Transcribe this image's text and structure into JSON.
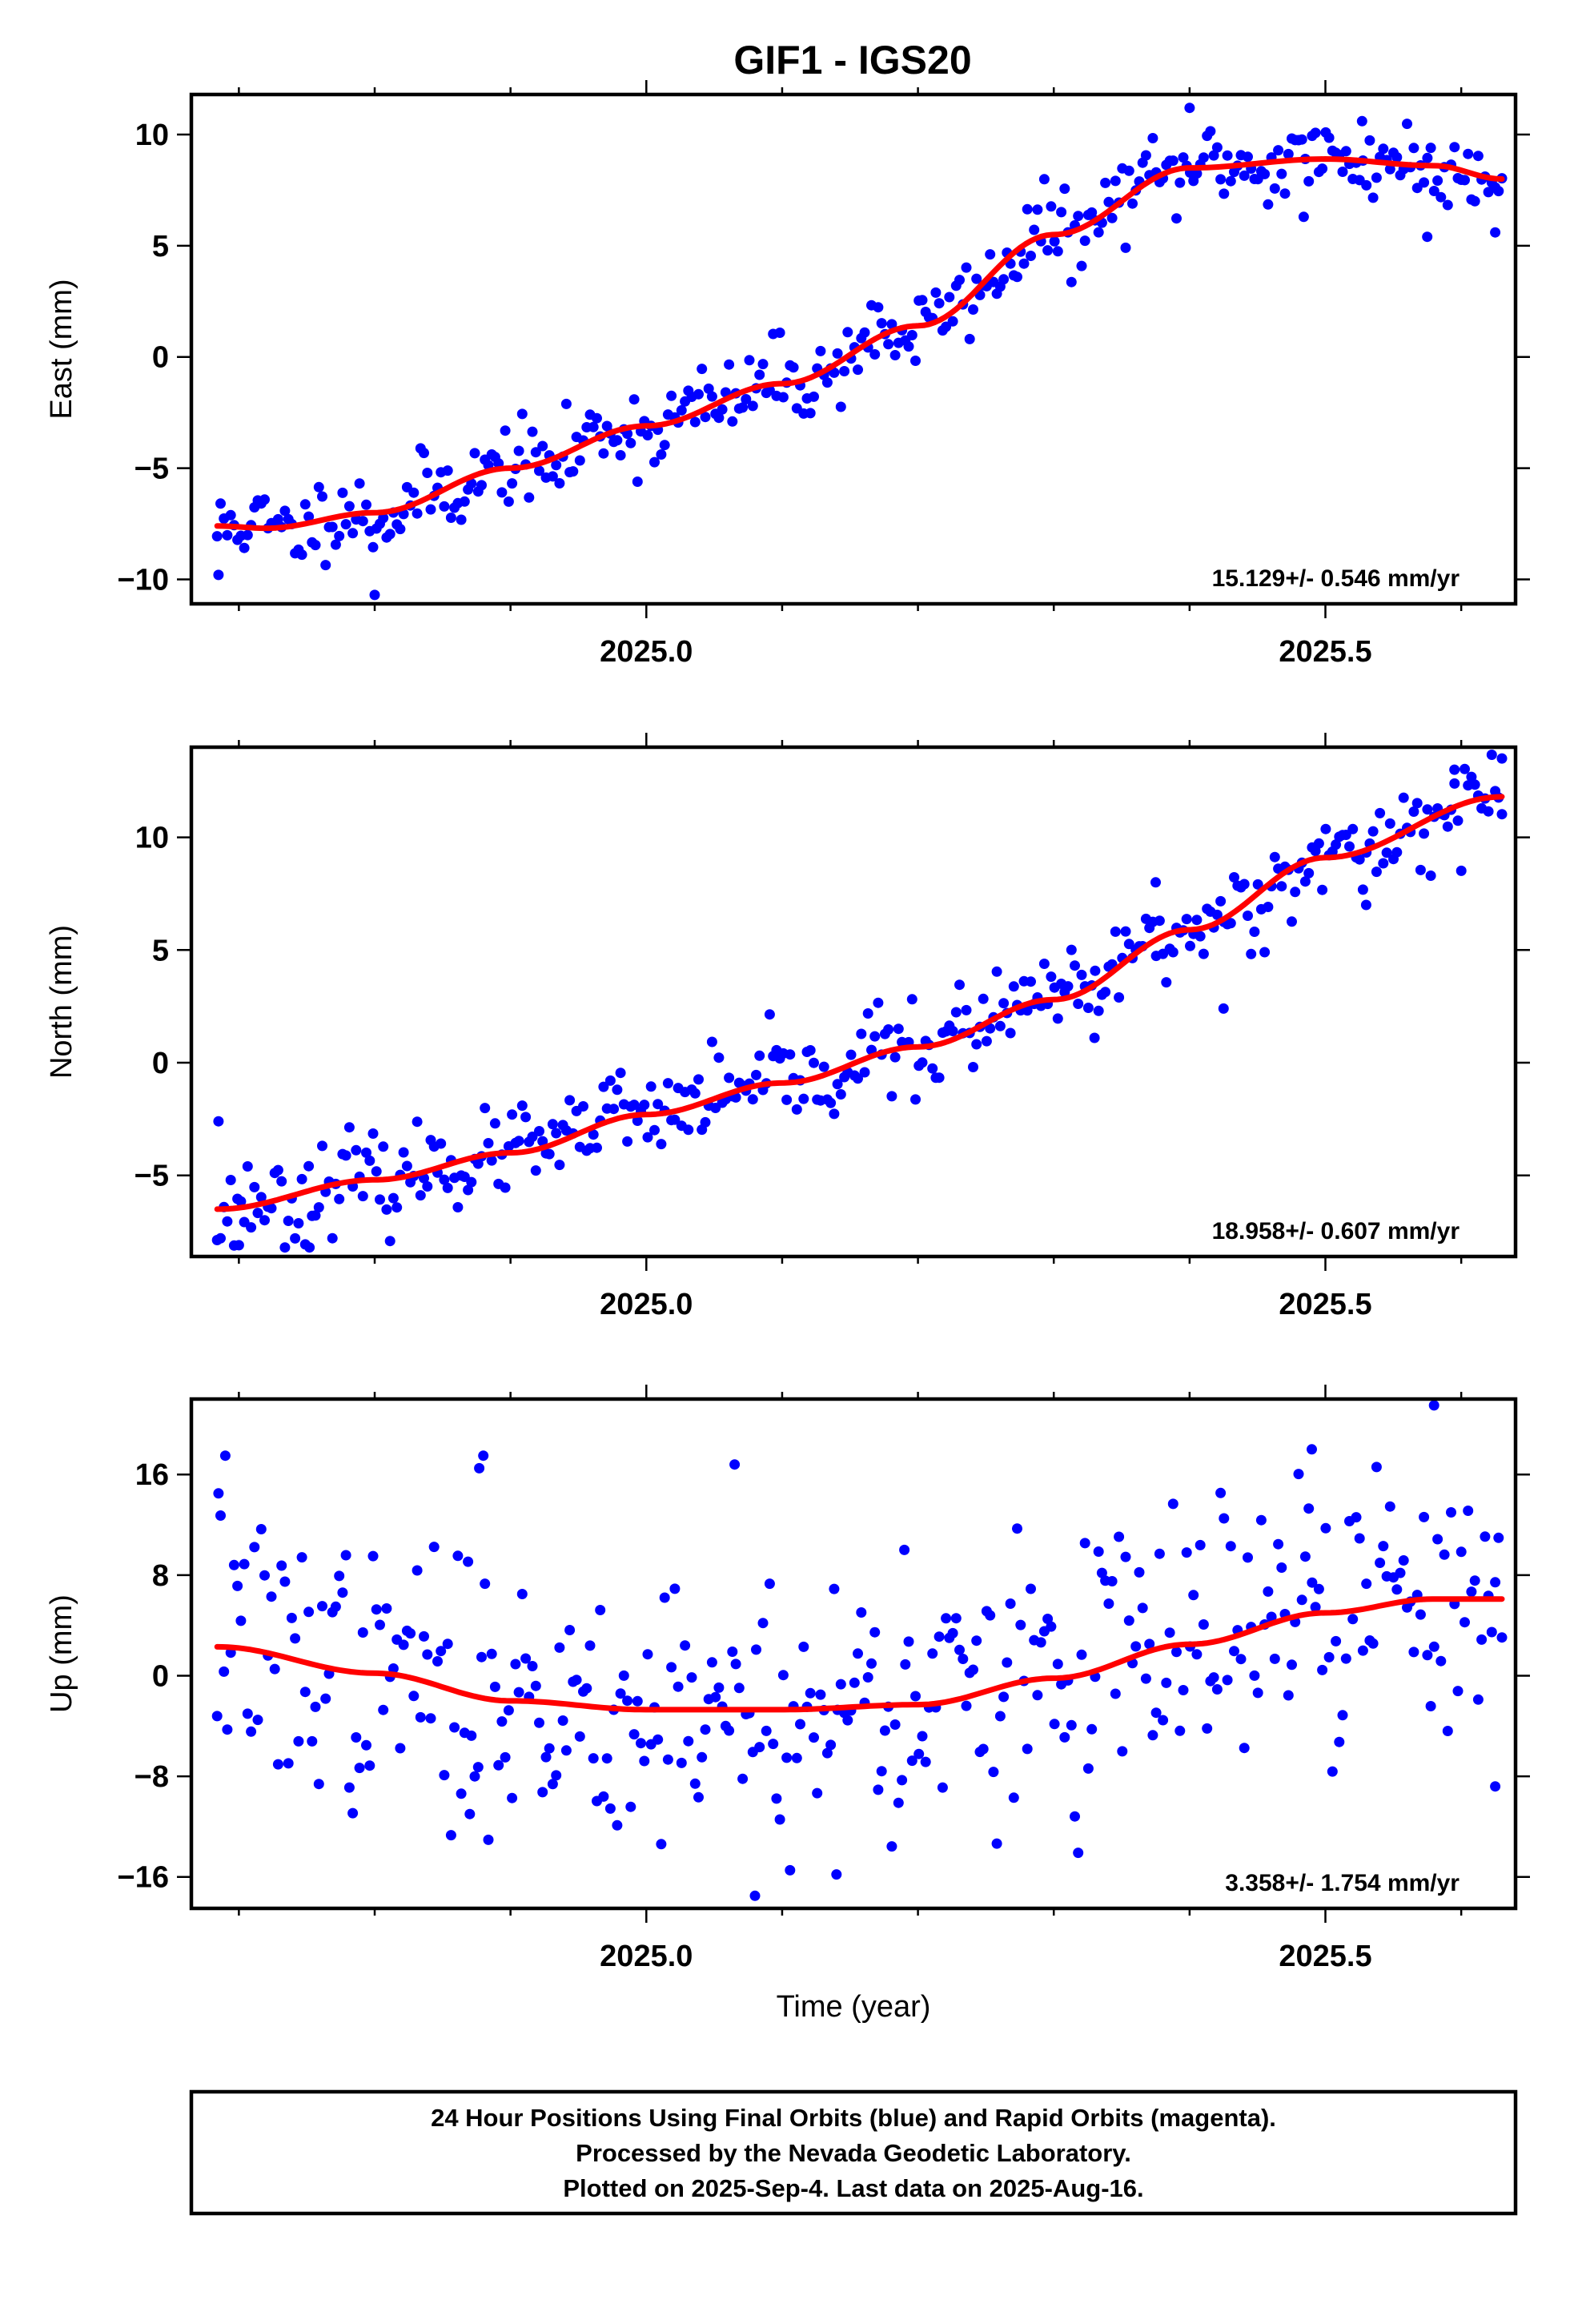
{
  "title": "GIF1 - IGS20",
  "footer": {
    "lines": [
      "24 Hour Positions Using Final Orbits (blue) and Rapid Orbits (magenta).",
      "Processed by the Nevada Geodetic Laboratory.",
      "Plotted on 2025-Sep-4. Last data on 2025-Aug-16."
    ]
  },
  "colors": {
    "points": "#0000ff",
    "fit": "#ff0000",
    "frame": "#000000"
  },
  "chart_data": [
    {
      "type": "scatter",
      "ylabel": "East (mm)",
      "xlabel": "",
      "xlim": [
        2024.665,
        2025.64
      ],
      "ylim": [
        -11.1,
        11.8
      ],
      "xticks": [
        2025.0,
        2025.5
      ],
      "xtick_labels": [
        "2025.0",
        "2025.5"
      ],
      "xminor": [
        2024.7,
        2024.8,
        2024.9,
        2025.1,
        2025.2,
        2025.3,
        2025.4,
        2025.6
      ],
      "yticks": [
        -10,
        -5,
        0,
        5,
        10
      ],
      "ytick_labels": [
        "−10",
        "−5",
        "0",
        "5",
        "10"
      ],
      "rate": "15.129+/- 0.546 mm/yr",
      "trend": {
        "x": [
          2024.684,
          2024.72,
          2024.8,
          2024.9,
          2025.0,
          2025.1,
          2025.2,
          2025.3,
          2025.4,
          2025.5,
          2025.58,
          2025.63
        ],
        "y": [
          -7.6,
          -7.7,
          -7.0,
          -5.0,
          -3.1,
          -1.2,
          1.4,
          5.5,
          8.5,
          8.9,
          8.6,
          8.0
        ]
      },
      "outliers": [
        [
          2024.685,
          -9.8
        ],
        [
          2024.8,
          -10.7
        ],
        [
          2025.4,
          11.2
        ],
        [
          2025.527,
          10.6
        ],
        [
          2025.575,
          5.4
        ],
        [
          2025.625,
          5.6
        ],
        [
          2025.484,
          6.3
        ]
      ],
      "seed": 11,
      "noise": 0.9
    },
    {
      "type": "scatter",
      "ylabel": "North (mm)",
      "xlabel": "",
      "xlim": [
        2024.665,
        2025.64
      ],
      "ylim": [
        -8.6,
        14.0
      ],
      "xticks": [
        2025.0,
        2025.5
      ],
      "xtick_labels": [
        "2025.0",
        "2025.5"
      ],
      "xminor": [
        2024.7,
        2024.8,
        2024.9,
        2025.1,
        2025.2,
        2025.3,
        2025.4,
        2025.6
      ],
      "yticks": [
        -5,
        0,
        5,
        10
      ],
      "ytick_labels": [
        "−5",
        "0",
        "5",
        "10"
      ],
      "rate": "18.958+/- 0.607 mm/yr",
      "trend": {
        "x": [
          2024.684,
          2024.8,
          2024.9,
          2025.0,
          2025.1,
          2025.2,
          2025.3,
          2025.4,
          2025.5,
          2025.63
        ],
        "y": [
          -6.5,
          -5.2,
          -4.0,
          -2.3,
          -0.9,
          0.7,
          2.8,
          5.9,
          9.1,
          11.8
        ]
      },
      "outliers": [
        [
          2024.685,
          -2.6
        ],
        [
          2024.7,
          -8.1
        ],
        [
          2024.752,
          -8.2
        ],
        [
          2025.33,
          1.1
        ],
        [
          2025.375,
          8.0
        ],
        [
          2025.425,
          2.4
        ],
        [
          2025.63,
          13.5
        ],
        [
          2025.595,
          13.0
        ],
        [
          2025.53,
          7.0
        ]
      ],
      "seed": 23,
      "noise": 0.95
    },
    {
      "type": "scatter",
      "ylabel": "Up (mm)",
      "xlabel": "Time (year)",
      "xlim": [
        2024.665,
        2025.64
      ],
      "ylim": [
        -18.5,
        22.0
      ],
      "xticks": [
        2025.0,
        2025.5
      ],
      "xtick_labels": [
        "2025.0",
        "2025.5"
      ],
      "xminor": [
        2024.7,
        2024.8,
        2024.9,
        2025.1,
        2025.2,
        2025.3,
        2025.4,
        2025.6
      ],
      "yticks": [
        -16,
        -8,
        0,
        8,
        16
      ],
      "ytick_labels": [
        "−16",
        "−8",
        "0",
        "8",
        "16"
      ],
      "rate": "3.358+/- 1.754 mm/yr",
      "trend": {
        "x": [
          2024.684,
          2024.8,
          2024.9,
          2025.0,
          2025.1,
          2025.2,
          2025.3,
          2025.4,
          2025.5,
          2025.58,
          2025.63
        ],
        "y": [
          2.3,
          0.2,
          -2.0,
          -2.7,
          -2.7,
          -2.3,
          -0.2,
          2.5,
          5.0,
          6.1,
          6.1
        ]
      },
      "outliers": [
        [
          2024.685,
          14.5
        ],
        [
          2024.69,
          17.5
        ],
        [
          2024.88,
          17.5
        ],
        [
          2024.877,
          16.5
        ],
        [
          2025.065,
          16.8
        ],
        [
          2025.08,
          -17.5
        ],
        [
          2025.58,
          21.5
        ],
        [
          2025.49,
          18.0
        ],
        [
          2025.625,
          -8.8
        ],
        [
          2025.14,
          -15.8
        ],
        [
          2024.87,
          -11.0
        ],
        [
          2025.19,
          10.0
        ]
      ],
      "seed": 37,
      "noise": 5.2
    }
  ]
}
